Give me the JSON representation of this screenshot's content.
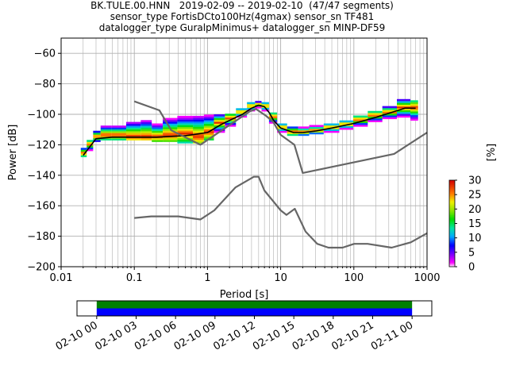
{
  "title_lines": [
    "BK.TULE.00.HNN   2019-02-09 -- 2019-02-10  (47/47 segments)",
    "sensor_type FortisDCto100Hz(4gmax) sensor_sn TF481",
    "datalogger_type GuralpMinimus+ datalogger_sn MINP-DF59"
  ],
  "chart_data": [
    {
      "type": "heatmap",
      "xlabel": "Period [s]",
      "ylabel": "Power [dB]",
      "xscale": "log",
      "xlim": [
        0.01,
        1000
      ],
      "ylim": [
        -200,
        -50
      ],
      "grid": true,
      "x_ticks": [
        {
          "value": 0.01,
          "label": "0.01"
        },
        {
          "value": 0.1,
          "label": "0.1"
        },
        {
          "value": 1,
          "label": "1"
        },
        {
          "value": 10,
          "label": "10"
        },
        {
          "value": 100,
          "label": "100"
        },
        {
          "value": 1000,
          "label": "1000"
        }
      ],
      "y_ticks": [
        {
          "value": -60,
          "label": "−60"
        },
        {
          "value": -80,
          "label": "−80"
        },
        {
          "value": -100,
          "label": "−100"
        },
        {
          "value": -120,
          "label": "−120"
        },
        {
          "value": -140,
          "label": "−140"
        },
        {
          "value": -160,
          "label": "−160"
        },
        {
          "value": -180,
          "label": "−180"
        },
        {
          "value": -200,
          "label": "−200"
        }
      ],
      "colorbar": {
        "label": "[%]",
        "range": [
          0,
          30
        ],
        "ticks": [
          {
            "value": 0,
            "label": "0"
          },
          {
            "value": 5,
            "label": "5"
          },
          {
            "value": 10,
            "label": "10"
          },
          {
            "value": 15,
            "label": "15"
          },
          {
            "value": 20,
            "label": "20"
          },
          {
            "value": 25,
            "label": "25"
          },
          {
            "value": 30,
            "label": "30"
          }
        ]
      },
      "density": [
        {
          "x": 0.02,
          "low": -128,
          "high": -122,
          "peak": -126
        },
        {
          "x": 0.025,
          "low": -124,
          "high": -117,
          "peak": -120
        },
        {
          "x": 0.03,
          "low": -118,
          "high": -111,
          "peak": -115
        },
        {
          "x": 0.04,
          "low": -117,
          "high": -108,
          "peak": -114
        },
        {
          "x": 0.06,
          "low": -117,
          "high": -108,
          "peak": -114
        },
        {
          "x": 0.1,
          "low": -117,
          "high": -105,
          "peak": -115
        },
        {
          "x": 0.15,
          "low": -117,
          "high": -104,
          "peak": -115
        },
        {
          "x": 0.2,
          "low": -118,
          "high": -107,
          "peak": -115
        },
        {
          "x": 0.3,
          "low": -118,
          "high": -103,
          "peak": -114
        },
        {
          "x": 0.5,
          "low": -119,
          "high": -102,
          "peak": -113
        },
        {
          "x": 0.8,
          "low": -119,
          "high": -101,
          "peak": -115
        },
        {
          "x": 1,
          "low": -117,
          "high": -101,
          "peak": -112
        },
        {
          "x": 1.5,
          "low": -112,
          "high": -101,
          "peak": -106
        },
        {
          "x": 2,
          "low": -108,
          "high": -100,
          "peak": -103
        },
        {
          "x": 3,
          "low": -102,
          "high": -96,
          "peak": -99
        },
        {
          "x": 4,
          "low": -98,
          "high": -93,
          "peak": -95
        },
        {
          "x": 5,
          "low": -96,
          "high": -92,
          "peak": -94
        },
        {
          "x": 6,
          "low": -98,
          "high": -93,
          "peak": -95
        },
        {
          "x": 8,
          "low": -106,
          "high": -99,
          "peak": -102
        },
        {
          "x": 10,
          "low": -112,
          "high": -106,
          "peak": -109
        },
        {
          "x": 15,
          "low": -114,
          "high": -108,
          "peak": -112
        },
        {
          "x": 20,
          "low": -114,
          "high": -109,
          "peak": -112
        },
        {
          "x": 30,
          "low": -113,
          "high": -108,
          "peak": -111
        },
        {
          "x": 50,
          "low": -112,
          "high": -106,
          "peak": -109
        },
        {
          "x": 80,
          "low": -110,
          "high": -104,
          "peak": -107
        },
        {
          "x": 120,
          "low": -108,
          "high": -101,
          "peak": -104
        },
        {
          "x": 200,
          "low": -105,
          "high": -98,
          "peak": -101
        },
        {
          "x": 300,
          "low": -103,
          "high": -95,
          "peak": -99
        },
        {
          "x": 500,
          "low": -102,
          "high": -91,
          "peak": -96
        },
        {
          "x": 700,
          "low": -104,
          "high": -91,
          "peak": -96
        }
      ],
      "series": [
        {
          "style": "mode",
          "color": "#000000",
          "x": [
            0.02,
            0.025,
            0.03,
            0.05,
            0.1,
            0.2,
            0.5,
            1,
            1.5,
            2,
            3,
            4,
            5,
            6,
            7,
            8,
            10,
            15,
            20,
            30,
            50,
            100,
            200,
            500,
            700
          ],
          "y": [
            -127,
            -121,
            -116,
            -115,
            -115,
            -115,
            -114,
            -112,
            -107,
            -104,
            -100,
            -96,
            -94,
            -95,
            -99,
            -104,
            -109,
            -112,
            -112,
            -111,
            -109,
            -106,
            -102,
            -96,
            -96
          ]
        },
        {
          "style": "nlnm",
          "color": "#666666",
          "x": [
            0.1,
            0.17,
            0.4,
            0.8,
            1.24,
            2.4,
            4.3,
            5,
            6,
            10,
            12,
            15.6,
            21.9,
            31.6,
            45,
            70,
            101,
            154,
            328,
            600,
            1000
          ],
          "y": [
            -168,
            -167,
            -167,
            -169,
            -163,
            -148,
            -141,
            -141,
            -150,
            -163,
            -166,
            -162,
            -177,
            -185,
            -187.5,
            -187.5,
            -185,
            -185,
            -187.5,
            -184,
            -178
          ]
        },
        {
          "style": "nhnm",
          "color": "#666666",
          "x": [
            0.1,
            0.22,
            0.32,
            0.8,
            3.8,
            4.6,
            6.3,
            7.9,
            10,
            15.4,
            20,
            354.8,
            1000
          ],
          "y": [
            -91.5,
            -97.4,
            -110.5,
            -120,
            -98,
            -96.5,
            -101,
            -105,
            -113.5,
            -120,
            -138.5,
            -126,
            -112
          ]
        }
      ]
    },
    {
      "type": "timeline",
      "x_ticks": [
        {
          "label": "02-10 00"
        },
        {
          "label": "02-10 03"
        },
        {
          "label": "02-10 06"
        },
        {
          "label": "02-10 09"
        },
        {
          "label": "02-10 12"
        },
        {
          "label": "02-10 15"
        },
        {
          "label": "02-10 18"
        },
        {
          "label": "02-10 21"
        },
        {
          "label": "02-11 00"
        }
      ],
      "xlim_hours": [
        -1.5,
        25.5
      ],
      "bars": [
        {
          "color": "#008000",
          "start_hour": 0,
          "end_hour": 24
        },
        {
          "color": "#0000ff",
          "start_hour": 0,
          "end_hour": 24
        }
      ]
    }
  ]
}
